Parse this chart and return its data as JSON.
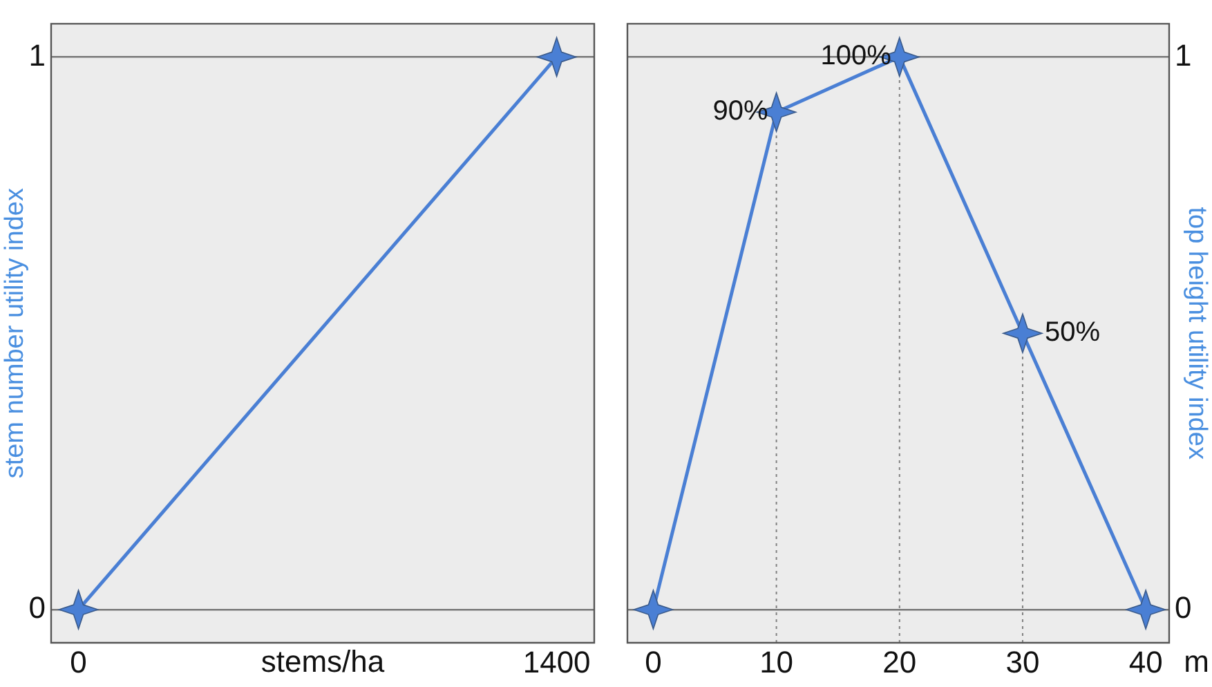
{
  "chart_data": [
    {
      "type": "line",
      "ylabel": "stem number utility index",
      "xlabel": "stems/ha",
      "xlim": [
        -80,
        1510
      ],
      "xticks": [
        0,
        1400
      ],
      "ylim": [
        -0.06,
        1.06
      ],
      "yticks": [
        0,
        1
      ],
      "grid": "y",
      "marker": "star",
      "line_style": "solid",
      "series": [
        {
          "color": "#4a7fd4",
          "x": [
            0,
            1400
          ],
          "values": [
            0,
            1
          ]
        }
      ]
    },
    {
      "type": "line",
      "y2label": "top height utility index",
      "xlabel": "m",
      "xlim": [
        -2.1,
        41.9
      ],
      "xticks": [
        0,
        10,
        20,
        30,
        40
      ],
      "y2lim": [
        -0.06,
        1.06
      ],
      "y2ticks": [
        0,
        1
      ],
      "grid": "y",
      "marker": "star",
      "line_style": "solid",
      "ref_lines": [
        {
          "axis": "x",
          "value": 10,
          "line_style": "dotted",
          "color": "#808080"
        },
        {
          "axis": "x",
          "value": 20,
          "line_style": "dotted",
          "color": "#808080"
        },
        {
          "axis": "x",
          "value": 30,
          "line_style": "dotted",
          "color": "#808080"
        }
      ],
      "series": [
        {
          "color": "#4a7fd4",
          "axis": "y2",
          "x": [
            0,
            10,
            20,
            30,
            40
          ],
          "values": [
            0,
            0.9,
            1,
            0.5,
            0
          ],
          "value_labels": [
            null,
            "90%",
            "100%",
            "50%",
            null
          ]
        }
      ]
    }
  ]
}
